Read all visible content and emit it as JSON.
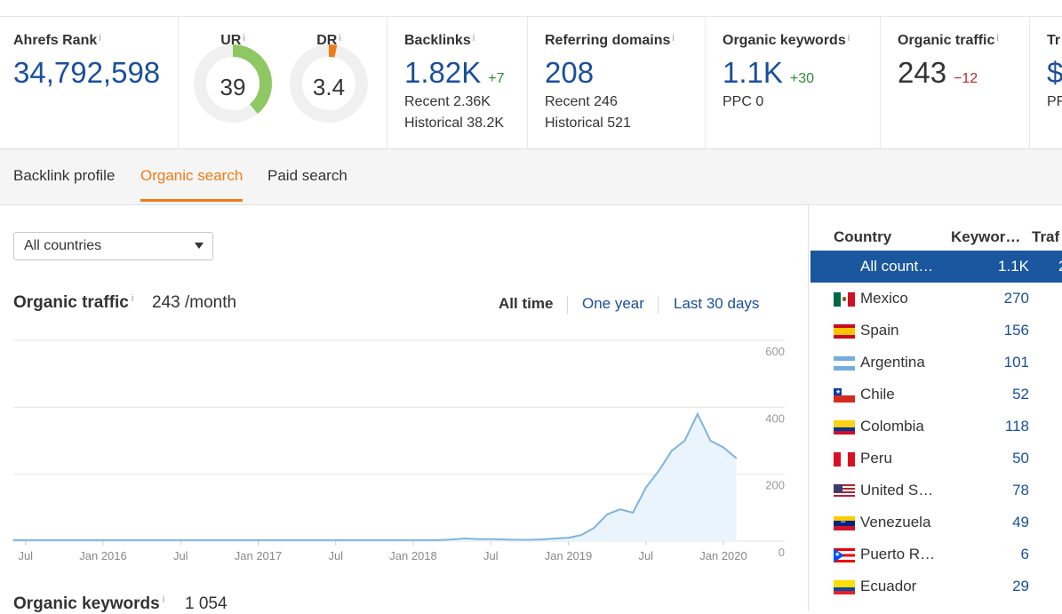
{
  "metrics": {
    "ahrefs_rank": {
      "label": "Ahrefs Rank",
      "info": "i",
      "value": "34,792,598"
    },
    "ur": {
      "label": "UR",
      "info": "i",
      "value": "39",
      "fill_fraction": 0.39
    },
    "dr": {
      "label": "DR",
      "info": "i",
      "value": "3.4",
      "fill_fraction": 0.034
    },
    "backlinks": {
      "label": "Backlinks",
      "info": "i",
      "value": "1.82K",
      "delta": "+7",
      "recent": "Recent 2.36K",
      "historical": "Historical 38.2K"
    },
    "referring_domains": {
      "label": "Referring domains",
      "info": "i",
      "value": "208",
      "recent": "Recent 246",
      "historical": "Historical 521"
    },
    "organic_keywords": {
      "label": "Organic keywords",
      "info": "i",
      "value": "1.1K",
      "delta": "+30",
      "ppc": "PPC 0"
    },
    "organic_traffic": {
      "label": "Organic traffic",
      "info": "i",
      "value": "243",
      "delta": "−12"
    },
    "traffic_value": {
      "label": "Tr",
      "value": "$",
      "sub": "PF"
    }
  },
  "tabs": [
    "Backlink profile",
    "Organic search",
    "Paid search"
  ],
  "active_tab": "Organic search",
  "country_select": {
    "value": "All countries"
  },
  "organic_traffic_chart": {
    "title": "Organic traffic",
    "info": "i",
    "value": "243 /month",
    "ranges": [
      "All time",
      "One year",
      "Last 30 days"
    ],
    "active_range": "All time"
  },
  "organic_keywords_section": {
    "title": "Organic keywords",
    "info": "i",
    "value": "1 054"
  },
  "chart_data": {
    "type": "area",
    "x_tick_labels": [
      "Jul",
      "Jan 2016",
      "Jul",
      "Jan 2017",
      "Jul",
      "Jan 2018",
      "Jul",
      "Jan 2019",
      "Jul",
      "Jan 2020"
    ],
    "y_tick_labels": [
      "600",
      "400",
      "200",
      "0"
    ],
    "ylim": [
      0,
      600
    ],
    "grid": true,
    "series_color": "#7fb3e0",
    "fill_color": "#eaf4fc",
    "x": [
      "2015-06",
      "2015-07",
      "2015-10",
      "2016-01",
      "2016-04",
      "2016-07",
      "2016-10",
      "2017-01",
      "2017-04",
      "2017-07",
      "2017-10",
      "2018-01",
      "2018-03",
      "2018-04",
      "2018-05",
      "2018-06",
      "2018-07",
      "2018-08",
      "2018-09",
      "2018-10",
      "2018-11",
      "2018-12",
      "2019-01",
      "2019-02",
      "2019-03",
      "2019-04",
      "2019-05",
      "2019-06",
      "2019-07",
      "2019-08",
      "2019-09",
      "2019-10",
      "2019-11",
      "2019-12",
      "2020-01",
      "2020-02"
    ],
    "values": [
      3,
      3,
      3,
      3,
      3,
      3,
      3,
      3,
      3,
      3,
      3,
      3,
      3,
      5,
      8,
      6,
      6,
      5,
      4,
      4,
      5,
      8,
      10,
      18,
      40,
      80,
      95,
      85,
      160,
      210,
      270,
      300,
      380,
      300,
      280,
      248
    ]
  },
  "country_panel": {
    "headers": {
      "country": "Country",
      "keywords": "Keywor…",
      "traffic": "Traf"
    },
    "rows": [
      {
        "name": "All count…",
        "keywords": "1.1K",
        "traffic": "2",
        "flag": "none",
        "selected": true
      },
      {
        "name": "Mexico",
        "keywords": "270",
        "flag": "mexico"
      },
      {
        "name": "Spain",
        "keywords": "156",
        "flag": "spain"
      },
      {
        "name": "Argentina",
        "keywords": "101",
        "flag": "argentina"
      },
      {
        "name": "Chile",
        "keywords": "52",
        "flag": "chile"
      },
      {
        "name": "Colombia",
        "keywords": "118",
        "flag": "colombia"
      },
      {
        "name": "Peru",
        "keywords": "50",
        "flag": "peru"
      },
      {
        "name": "United S…",
        "keywords": "78",
        "flag": "usa"
      },
      {
        "name": "Venezuela",
        "keywords": "49",
        "flag": "venezuela"
      },
      {
        "name": "Puerto R…",
        "keywords": "6",
        "flag": "puerto-rico"
      },
      {
        "name": "Ecuador",
        "keywords": "29",
        "flag": "ecuador"
      }
    ]
  },
  "colors": {
    "accent_orange": "#f07b15",
    "link_blue": "#1a4f9c",
    "positive": "#2e8b34",
    "negative": "#c0282e",
    "ur_gauge": "#8dc863",
    "dr_gauge": "#f07b15",
    "selected_row": "#1a579e"
  }
}
